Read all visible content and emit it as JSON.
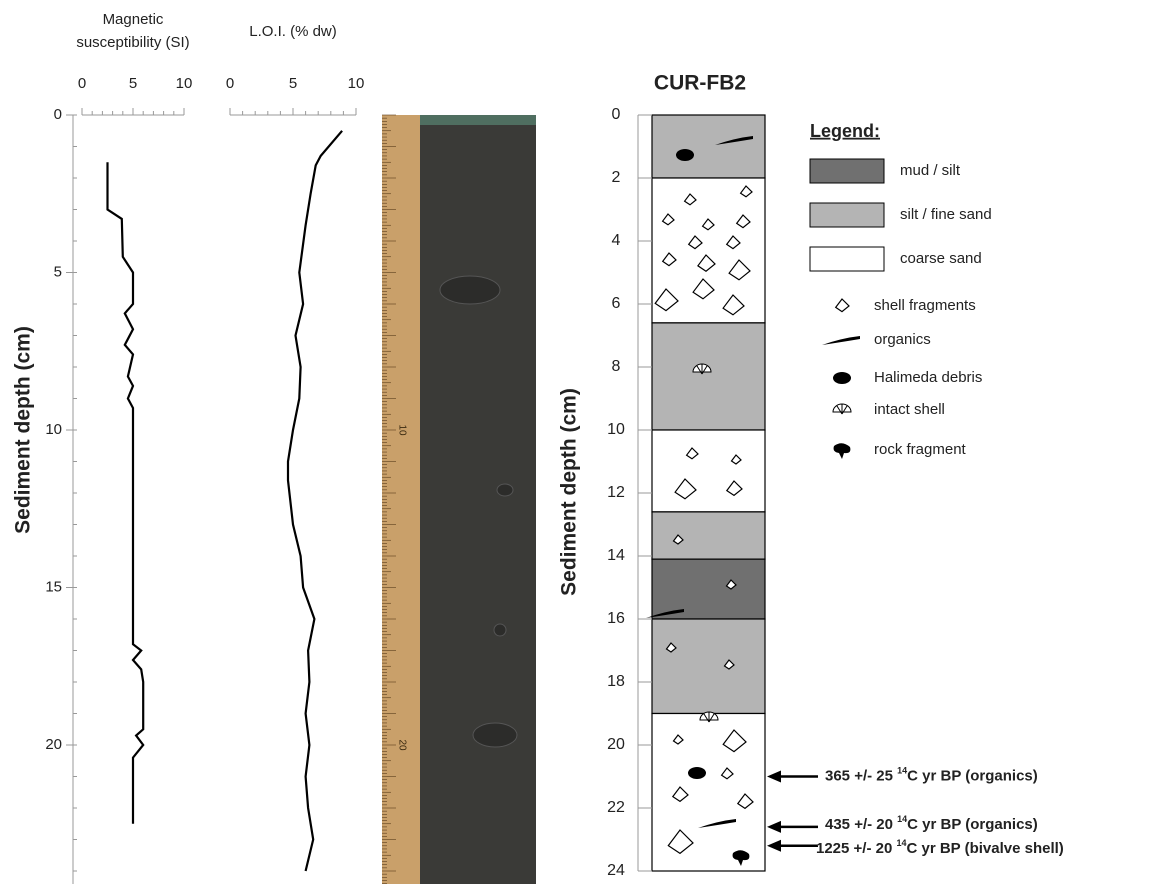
{
  "chart_data": [
    {
      "type": "profile",
      "title": [
        "Magnetic",
        "susceptibility (SI)"
      ],
      "xlim": [
        0,
        10
      ],
      "xticks": [
        0,
        5,
        10
      ],
      "ylim": [
        0,
        24
      ],
      "yticks": [
        0,
        5,
        10,
        15,
        20
      ],
      "ylabel": "Sediment depth (cm)",
      "series": [
        {
          "color": "#000000",
          "depth": [
            1.5,
            3.0,
            3.3,
            4.5,
            5.0,
            6.0,
            6.3,
            6.8,
            7.3,
            7.6,
            8.3,
            8.6,
            9.0,
            9.3,
            16.8,
            17.0,
            17.3,
            17.6,
            18.0,
            19.5,
            19.7,
            20.0,
            20.4,
            22.5
          ],
          "values": [
            2.5,
            2.5,
            3.9,
            4.0,
            5.0,
            5.0,
            4.2,
            5.0,
            4.2,
            5.0,
            4.5,
            5.0,
            4.5,
            5.0,
            5.0,
            5.8,
            5.0,
            5.8,
            6.0,
            6.0,
            5.3,
            6.0,
            5.0,
            5.0
          ]
        }
      ]
    },
    {
      "type": "profile",
      "title": [
        "L.O.I. (% dw)"
      ],
      "xlim": [
        0,
        10
      ],
      "xticks": [
        0,
        5,
        10
      ],
      "ylim": [
        0,
        24
      ],
      "series": [
        {
          "color": "#000000",
          "depth": [
            0.5,
            1.3,
            1.6,
            2.5,
            3.5,
            5.0,
            6.0,
            7.0,
            8.0,
            9.0,
            10.0,
            11.0,
            11.6,
            13.0,
            14.0,
            15.0,
            16.0,
            17.0,
            18.0,
            19.0,
            20.0,
            21.0,
            22.0,
            23.0,
            24.0
          ],
          "values": [
            8.9,
            7.2,
            6.8,
            6.4,
            6.0,
            5.5,
            5.8,
            5.2,
            5.6,
            5.5,
            5.0,
            4.6,
            4.6,
            5.0,
            5.6,
            5.8,
            6.7,
            6.2,
            6.3,
            6.0,
            6.3,
            6.0,
            6.2,
            6.6,
            6.0
          ]
        }
      ]
    },
    {
      "type": "photo",
      "ylim": [
        0,
        24
      ],
      "ruler_ticks": [
        10,
        20
      ]
    },
    {
      "type": "column",
      "title": "CUR-FB2",
      "ylabel": "Sediment depth (cm)",
      "ylim": [
        0,
        24
      ],
      "yticks": [
        0,
        2,
        4,
        6,
        8,
        10,
        12,
        14,
        16,
        18,
        20,
        22,
        24
      ],
      "layers": [
        {
          "top": 0,
          "bottom": 2,
          "lithology": "silt / fine sand"
        },
        {
          "top": 2,
          "bottom": 6.6,
          "lithology": "coarse sand"
        },
        {
          "top": 6.6,
          "bottom": 10,
          "lithology": "silt / fine sand"
        },
        {
          "top": 10,
          "bottom": 12.6,
          "lithology": "coarse sand"
        },
        {
          "top": 12.6,
          "bottom": 14.1,
          "lithology": "silt / fine sand"
        },
        {
          "top": 14.1,
          "bottom": 16,
          "lithology": "mud / silt"
        },
        {
          "top": 16,
          "bottom": 19,
          "lithology": "silt / fine sand"
        },
        {
          "top": 19,
          "bottom": 24,
          "lithology": "coarse sand"
        }
      ],
      "legend": {
        "title": "Legend:",
        "units": [
          {
            "name": "mud / silt",
            "color": "#707070"
          },
          {
            "name": "silt / fine sand",
            "color": "#b4b4b4"
          },
          {
            "name": "coarse sand",
            "color": "#ffffff"
          }
        ],
        "symbols": [
          "shell fragments",
          "organics",
          "Halimeda debris",
          "intact shell",
          "rock fragment"
        ]
      },
      "annotations": [
        {
          "depth": 21.0,
          "before": "365 +/- 25 ",
          "sup": "14",
          "after": "C yr BP (organics)"
        },
        {
          "depth": 22.6,
          "before": "435 +/- 20 ",
          "sup": "14",
          "after": "C yr BP (organics)"
        },
        {
          "depth": 23.2,
          "before": "1225 +/- 20 ",
          "sup": "14",
          "after": "C yr BP (bivalve shell)"
        }
      ]
    }
  ]
}
